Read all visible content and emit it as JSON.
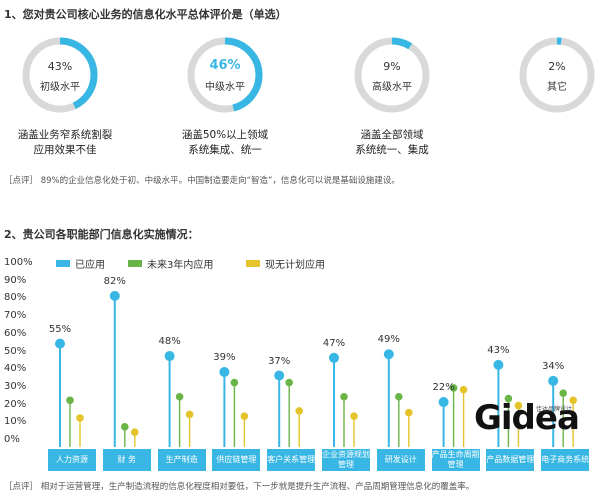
{
  "section1": {
    "title": "1、您对贵公司核心业务的信息化水平总体评价是（单选）",
    "comment": "［点评］ 89%的企业信息化处于初、中级水平。中国制造要走向“智造”，信息化可以说是基础设施建设。",
    "donuts": [
      {
        "pct_text": "43%",
        "label": "初级水平",
        "value": 43,
        "desc1": "涵盖业务窄系统割裂",
        "desc2": "应用效果不佳"
      },
      {
        "pct_text": "46%",
        "label": "中级水平",
        "value": 46,
        "desc1": "涵盖50%以上领域",
        "desc2": "系统集成、统一"
      },
      {
        "pct_text": "9%",
        "label": "高级水平",
        "value": 9,
        "desc1": "涵盖全部领域",
        "desc2": "系统统一、集成"
      },
      {
        "pct_text": "2%",
        "label": "其它",
        "value": 2,
        "desc1": "",
        "desc2": ""
      }
    ]
  },
  "section2": {
    "title": "2、贵公司各职能部门信息化实施情况：",
    "comment": "［点评］ 相对于运营管理，生产制造流程的信息化程度相对要低，下一步就是提升生产流程、产品周期管理信息化的覆盖率。"
  },
  "colors": {
    "applied": "#38b7e4",
    "next3": "#6ab547",
    "none": "#e4c42a",
    "ring_bg": "#d9d9d9"
  },
  "logo": {
    "text": "Gidea",
    "sub": "佳达品牌设计"
  },
  "chart_data": {
    "type": "lollipop",
    "ylim": [
      0,
      100
    ],
    "yticks": [
      "0%",
      "10%",
      "20%",
      "30%",
      "40%",
      "50%",
      "60%",
      "70%",
      "80%",
      "90%",
      "100%"
    ],
    "categories": [
      "人力资源",
      "财 务",
      "生产制造",
      "供应链管理",
      "客户关系管理",
      "企业资源规划管理",
      "研发设计",
      "产品生命周期管理",
      "产品数据管理",
      "电子商务系统"
    ],
    "series": [
      {
        "name": "已应用",
        "values": [
          55,
          82,
          48,
          39,
          37,
          47,
          49,
          22,
          43,
          34
        ]
      },
      {
        "name": "未来3年内应用",
        "values": [
          23,
          8,
          25,
          33,
          33,
          25,
          25,
          30,
          24,
          27
        ]
      },
      {
        "name": "现无计划应用",
        "values": [
          13,
          5,
          15,
          14,
          17,
          14,
          16,
          29,
          20,
          23
        ]
      }
    ],
    "data_labels": [
      "55%",
      "82%",
      "48%",
      "39%",
      "37%",
      "47%",
      "49%",
      "22%",
      "43%",
      "34%"
    ]
  }
}
